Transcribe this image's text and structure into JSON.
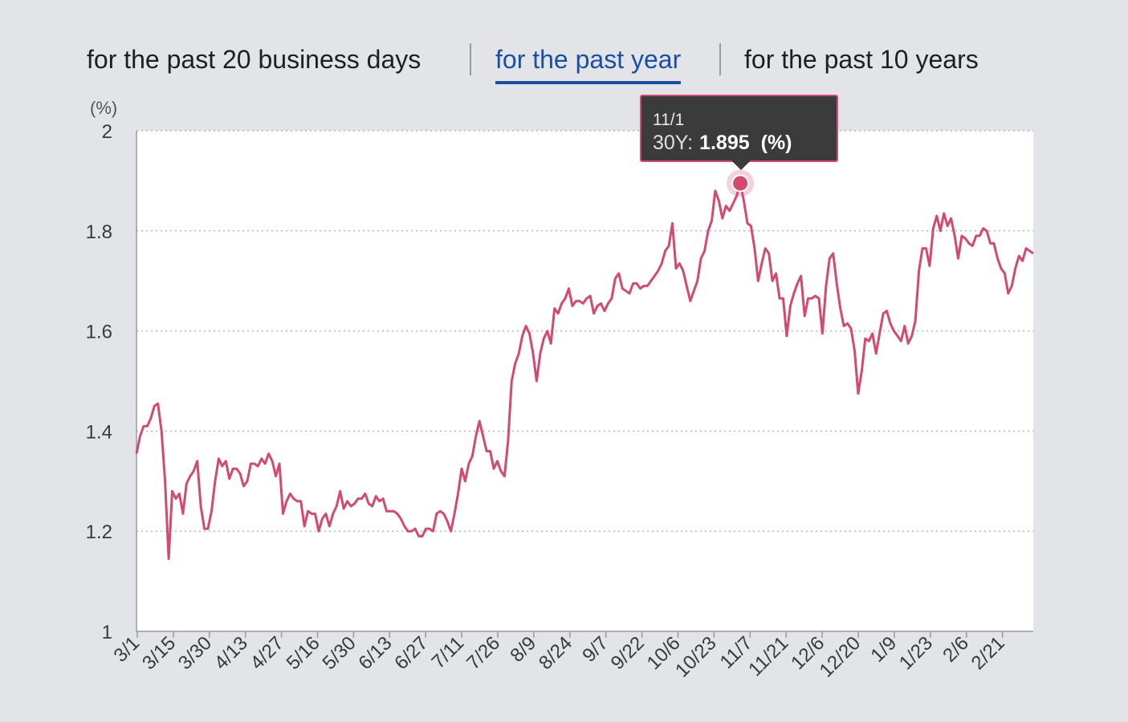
{
  "tabs": [
    {
      "label": "for the past 20 business days",
      "active": false
    },
    {
      "label": "for the past year",
      "active": true
    },
    {
      "label": "for the past 10 years",
      "active": false
    }
  ],
  "colors": {
    "line": "#d24a70",
    "active_tab": "#1b4fa3",
    "tooltip_bg": "#3b3b3b"
  },
  "tooltip": {
    "date": "11/1",
    "series": "30Y:",
    "value": "1.895",
    "unit": "(%)"
  },
  "chart_data": {
    "type": "line",
    "title": "",
    "ylabel": "(%)",
    "ylim": [
      1,
      2
    ],
    "yticks": [
      "2",
      "1.8",
      "1.6",
      "1.4",
      "1.2",
      "1"
    ],
    "grid": true,
    "xtick_labels": [
      "3/1",
      "3/15",
      "3/30",
      "4/13",
      "4/27",
      "5/16",
      "5/30",
      "6/13",
      "6/27",
      "7/11",
      "7/26",
      "8/9",
      "8/24",
      "9/7",
      "9/22",
      "10/6",
      "10/23",
      "11/7",
      "11/21",
      "12/6",
      "12/20",
      "1/9",
      "1/23",
      "2/6",
      "2/21"
    ],
    "series": [
      {
        "name": "30Y",
        "values": [
          1.355,
          1.39,
          1.41,
          1.41,
          1.425,
          1.45,
          1.455,
          1.4,
          1.3,
          1.145,
          1.28,
          1.265,
          1.275,
          1.235,
          1.295,
          1.31,
          1.32,
          1.34,
          1.25,
          1.205,
          1.205,
          1.24,
          1.3,
          1.345,
          1.33,
          1.34,
          1.305,
          1.325,
          1.325,
          1.315,
          1.29,
          1.3,
          1.335,
          1.335,
          1.33,
          1.345,
          1.335,
          1.355,
          1.34,
          1.31,
          1.335,
          1.235,
          1.26,
          1.275,
          1.265,
          1.26,
          1.26,
          1.21,
          1.24,
          1.235,
          1.235,
          1.2,
          1.225,
          1.235,
          1.21,
          1.235,
          1.25,
          1.28,
          1.245,
          1.26,
          1.25,
          1.255,
          1.265,
          1.265,
          1.275,
          1.255,
          1.25,
          1.27,
          1.26,
          1.265,
          1.24,
          1.24,
          1.24,
          1.235,
          1.225,
          1.21,
          1.2,
          1.2,
          1.205,
          1.19,
          1.19,
          1.205,
          1.205,
          1.2,
          1.235,
          1.24,
          1.235,
          1.22,
          1.2,
          1.235,
          1.275,
          1.325,
          1.3,
          1.335,
          1.35,
          1.39,
          1.42,
          1.39,
          1.36,
          1.36,
          1.325,
          1.34,
          1.32,
          1.31,
          1.38,
          1.5,
          1.535,
          1.555,
          1.59,
          1.61,
          1.595,
          1.555,
          1.5,
          1.555,
          1.585,
          1.6,
          1.575,
          1.645,
          1.635,
          1.655,
          1.665,
          1.685,
          1.65,
          1.66,
          1.66,
          1.655,
          1.665,
          1.67,
          1.635,
          1.65,
          1.655,
          1.64,
          1.655,
          1.665,
          1.705,
          1.715,
          1.685,
          1.68,
          1.675,
          1.695,
          1.695,
          1.685,
          1.69,
          1.69,
          1.7,
          1.71,
          1.72,
          1.735,
          1.76,
          1.77,
          1.815,
          1.725,
          1.735,
          1.72,
          1.69,
          1.66,
          1.68,
          1.7,
          1.745,
          1.76,
          1.8,
          1.82,
          1.88,
          1.86,
          1.825,
          1.85,
          1.84,
          1.855,
          1.87,
          1.895,
          1.86,
          1.815,
          1.81,
          1.765,
          1.7,
          1.735,
          1.765,
          1.755,
          1.7,
          1.715,
          1.665,
          1.665,
          1.59,
          1.65,
          1.675,
          1.695,
          1.71,
          1.63,
          1.665,
          1.665,
          1.67,
          1.665,
          1.595,
          1.69,
          1.745,
          1.755,
          1.695,
          1.645,
          1.61,
          1.615,
          1.605,
          1.56,
          1.475,
          1.52,
          1.585,
          1.58,
          1.595,
          1.555,
          1.595,
          1.635,
          1.64,
          1.615,
          1.6,
          1.59,
          1.58,
          1.61,
          1.575,
          1.59,
          1.62,
          1.72,
          1.765,
          1.765,
          1.73,
          1.805,
          1.83,
          1.8,
          1.835,
          1.81,
          1.825,
          1.79,
          1.745,
          1.79,
          1.785,
          1.775,
          1.77,
          1.79,
          1.79,
          1.805,
          1.8,
          1.775,
          1.775,
          1.745,
          1.725,
          1.715,
          1.675,
          1.69,
          1.725,
          1.75,
          1.74,
          1.765,
          1.76,
          1.755
        ]
      }
    ]
  }
}
